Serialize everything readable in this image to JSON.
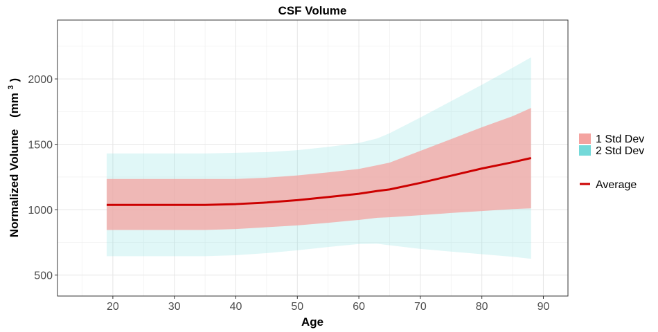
{
  "chart_data": {
    "type": "area",
    "title": "CSF Volume",
    "xlabel": "Age",
    "ylabel": "Normalized Volume",
    "ylabel_unit": "(mm",
    "ylabel_unit_sup": "3",
    "ylabel_unit_close": ")",
    "xlim": [
      11,
      94
    ],
    "ylim": [
      340,
      2450
    ],
    "x_ticks": [
      20,
      30,
      40,
      50,
      60,
      70,
      80,
      90
    ],
    "y_ticks": [
      500,
      1000,
      1500,
      2000
    ],
    "grid": true,
    "legend_position": "right",
    "x": [
      19,
      25,
      30,
      35,
      40,
      45,
      50,
      55,
      60,
      63,
      65,
      70,
      75,
      80,
      85,
      88
    ],
    "series": [
      {
        "name": "2 Std Dev",
        "color": "#74d9d9",
        "upper": [
          1430,
          1430,
          1430,
          1430,
          1435,
          1440,
          1455,
          1480,
          1510,
          1545,
          1585,
          1705,
          1830,
          1955,
          2085,
          2165
        ],
        "lower": [
          645,
          645,
          645,
          645,
          652,
          668,
          690,
          715,
          738,
          740,
          728,
          700,
          680,
          660,
          640,
          625
        ]
      },
      {
        "name": "1 Std Dev",
        "color": "#f4a3a0",
        "upper": [
          1235,
          1235,
          1235,
          1235,
          1235,
          1245,
          1262,
          1285,
          1312,
          1340,
          1360,
          1450,
          1540,
          1630,
          1715,
          1778
        ],
        "lower": [
          845,
          845,
          845,
          845,
          852,
          866,
          880,
          900,
          922,
          938,
          942,
          958,
          975,
          990,
          1005,
          1010
        ]
      },
      {
        "name": "Average",
        "color": "#cc0000",
        "values": [
          1037,
          1037,
          1037,
          1037,
          1043,
          1055,
          1073,
          1097,
          1122,
          1143,
          1155,
          1205,
          1260,
          1315,
          1363,
          1395
        ]
      }
    ]
  }
}
